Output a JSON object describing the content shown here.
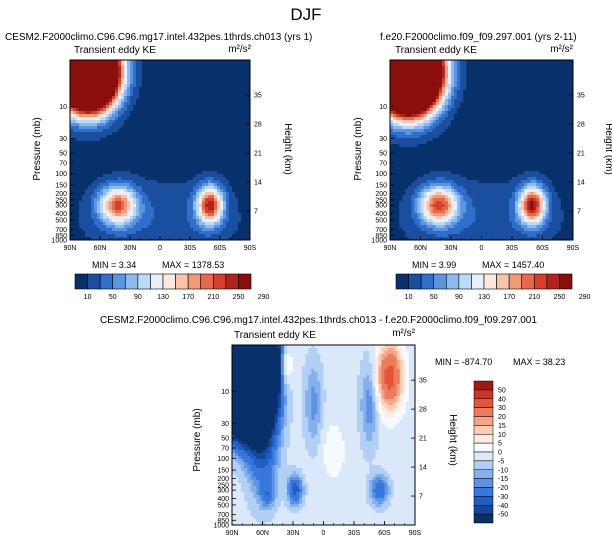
{
  "page": {
    "title": "DJF"
  },
  "palette": {
    "full": [
      "#08306b",
      "#1a4fa0",
      "#2f6fcb",
      "#5a96e0",
      "#8dbbef",
      "#bcd9f7",
      "#e8f1fb",
      "#fbe9df",
      "#f7c3ab",
      "#f19a78",
      "#e8694a",
      "#d4402b",
      "#b2231c",
      "#8a0f0c"
    ],
    "diff": [
      "#08306b",
      "#14479a",
      "#1f5ec4",
      "#3877db",
      "#5c93e4",
      "#85b0ec",
      "#b2cff4",
      "#dbe8f9",
      "#f6fbff",
      "#fdebe0",
      "#f9ccb4",
      "#f3a586",
      "#ec7d5c",
      "#e2553a",
      "#c93424",
      "#a0180f"
    ]
  },
  "chart_data": [
    {
      "type": "heatmap",
      "title": "CESM2.F2000climo.C96.C96.mg17.intel.432pes.1thrds.ch013 (yrs 1)",
      "subtitle": "Transient eddy KE",
      "units": "m²/s²",
      "ylabel": "Pressure (mb)",
      "ylabel_right": "Height (km)",
      "xticks": [
        "90N",
        "60N",
        "30N",
        "0",
        "30S",
        "60S",
        "90S"
      ],
      "yticks": [
        "10",
        "30",
        "50",
        "70",
        "100",
        "150",
        "200",
        "250",
        "300",
        "400",
        "500",
        "700",
        "850",
        "1000"
      ],
      "height_ticks": [
        "35",
        "28",
        "21",
        "14",
        "7"
      ],
      "min_label": "MIN =   3.34",
      "max_label": "MAX = 1378.53",
      "colorbar_labels": [
        "10",
        "50",
        "90",
        "130",
        "170",
        "210",
        "250",
        "290"
      ],
      "scale_max": 300,
      "blobs": [
        {
          "lat": 72,
          "p": 3,
          "v": 1300,
          "sx": 18,
          "sy": 0.8
        },
        {
          "lat": 42,
          "p": 300,
          "v": 230,
          "sx": 13,
          "sy": 0.45
        },
        {
          "lat": -50,
          "p": 300,
          "v": 270,
          "sx": 9,
          "sy": 0.45
        },
        {
          "lat": 0,
          "p": 500,
          "v": 35,
          "sx": 60,
          "sy": 1.0
        }
      ]
    },
    {
      "type": "heatmap",
      "title": "f.e20.F2000climo.f09_f09.297.001 (yrs 2-11)",
      "subtitle": "Transient eddy KE",
      "units": "m²/s²",
      "ylabel": "Pressure (mb)",
      "ylabel_right": "Height (km)",
      "xticks": [
        "90N",
        "60N",
        "30N",
        "0",
        "30S",
        "60S",
        "90S"
      ],
      "yticks": [
        "10",
        "30",
        "50",
        "70",
        "100",
        "150",
        "200",
        "250",
        "300",
        "400",
        "500",
        "700",
        "850",
        "1000"
      ],
      "height_ticks": [
        "35",
        "28",
        "21",
        "14",
        "7"
      ],
      "min_label": "MIN =   3.99",
      "max_label": "MAX = 1457.40",
      "colorbar_labels": [
        "10",
        "50",
        "90",
        "130",
        "170",
        "210",
        "250",
        "290"
      ],
      "scale_max": 300,
      "blobs": [
        {
          "lat": 72,
          "p": 3,
          "v": 1450,
          "sx": 19,
          "sy": 0.85
        },
        {
          "lat": 42,
          "p": 300,
          "v": 240,
          "sx": 13,
          "sy": 0.45
        },
        {
          "lat": -50,
          "p": 300,
          "v": 280,
          "sx": 9,
          "sy": 0.45
        },
        {
          "lat": 0,
          "p": 500,
          "v": 35,
          "sx": 60,
          "sy": 1.0
        }
      ]
    },
    {
      "type": "heatmap",
      "title": "CESM2.F2000climo.C96.C96.mg17.intel.432pes.1thrds.ch013 - f.e20.F2000climo.f09_f09.297.001",
      "subtitle": "Transient eddy KE",
      "units": "m²/s²",
      "ylabel": "Pressure (mb)",
      "ylabel_right": "Height (km)",
      "xticks": [
        "90N",
        "60N",
        "30N",
        "0",
        "30S",
        "60S",
        "90S"
      ],
      "yticks": [
        "10",
        "30",
        "50",
        "70",
        "100",
        "150",
        "200",
        "250",
        "300",
        "400",
        "500",
        "700",
        "850",
        "1000"
      ],
      "height_ticks": [
        "35",
        "28",
        "21",
        "14",
        "7"
      ],
      "min_label": "MIN = -874.70",
      "max_label": "MAX =  38.23",
      "colorbar_labels": [
        "50",
        "40",
        "30",
        "20",
        "15",
        "10",
        "5",
        "0",
        "-5",
        "-10",
        "-15",
        "-20",
        "-30",
        "-40",
        "-50"
      ],
      "diff_levels": [
        -50,
        -40,
        -30,
        -20,
        -15,
        -10,
        -5,
        0,
        5,
        10,
        15,
        20,
        30,
        40,
        50
      ]
    }
  ]
}
